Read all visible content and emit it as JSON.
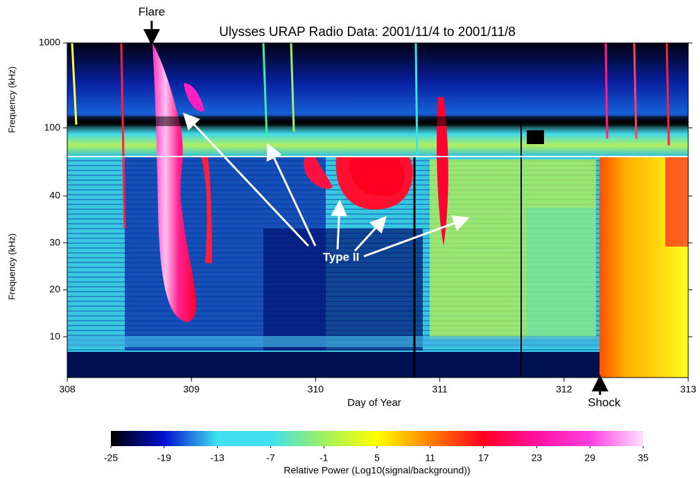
{
  "chart_data": {
    "type": "spectrogram",
    "title": "Ulysses URAP Radio Data: 2001/11/4 to 2001/11/8",
    "x_label": "Day of Year",
    "xlim": [
      308,
      313
    ],
    "xticks": [
      308,
      309,
      310,
      311,
      312,
      313
    ],
    "upper_panel": {
      "y_label": "Frequency (kHz)",
      "log_scale": true,
      "ylim": [
        46,
        1000
      ],
      "yticks": [
        100,
        1000
      ]
    },
    "lower_panel": {
      "y_label": "Frequency (kHz)",
      "log_scale": false,
      "ylim": [
        1.3,
        48.4
      ],
      "yticks": [
        10,
        20,
        30,
        40
      ]
    },
    "colorbar": {
      "label": "Relative Power (Log10(signal/background))",
      "lim": [
        -25,
        35
      ],
      "ticks": [
        -25,
        -19,
        -13,
        -7,
        -1,
        5,
        11,
        17,
        23,
        29,
        35
      ],
      "colors": [
        "#000000",
        "#0010d0",
        "#40e0f0",
        "#40e0f0",
        "#a0f060",
        "#ffff00",
        "#ff8000",
        "#ff0020",
        "#ff10a0",
        "#ff40e0",
        "#ffe0ff"
      ]
    },
    "annotations": [
      {
        "text": "Flare",
        "x": 308.68
      },
      {
        "text": "Shock",
        "x": 312.29
      },
      {
        "text": "Type II"
      }
    ]
  }
}
